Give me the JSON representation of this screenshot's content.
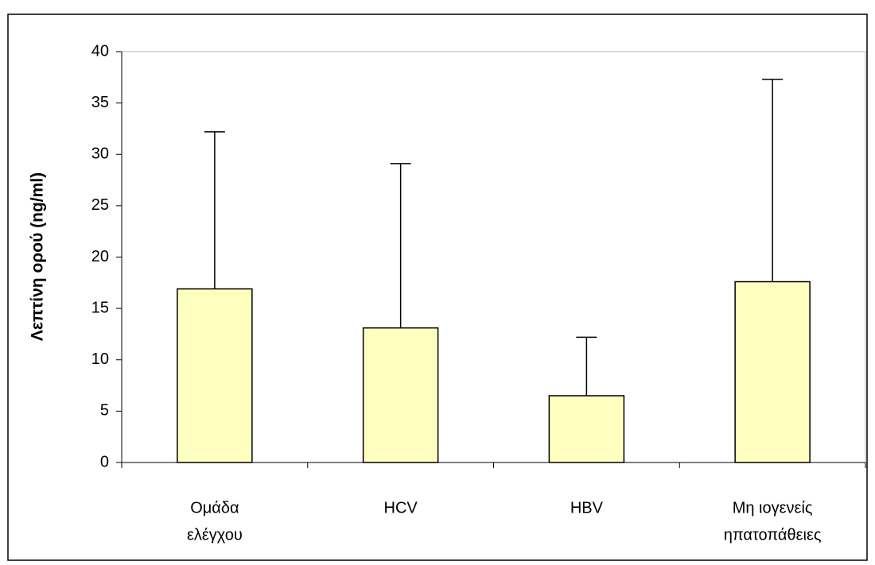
{
  "chart_data": {
    "type": "bar",
    "y_label": "Λεπτίνη ορού (ng/ml)",
    "categories": [
      [
        "Ομάδα",
        "ελέγχου"
      ],
      [
        "HCV"
      ],
      [
        "HBV"
      ],
      [
        "Μη ιογενείς",
        "ηπατοπάθειες"
      ]
    ],
    "values": [
      16.9,
      13.1,
      6.5,
      17.6
    ],
    "errors": [
      15.3,
      16.0,
      5.7,
      19.7
    ],
    "color": "#ffffc0",
    "ylim": [
      0,
      40
    ],
    "yticks": [
      0,
      5,
      10,
      15,
      20,
      25,
      30,
      35,
      40
    ]
  }
}
